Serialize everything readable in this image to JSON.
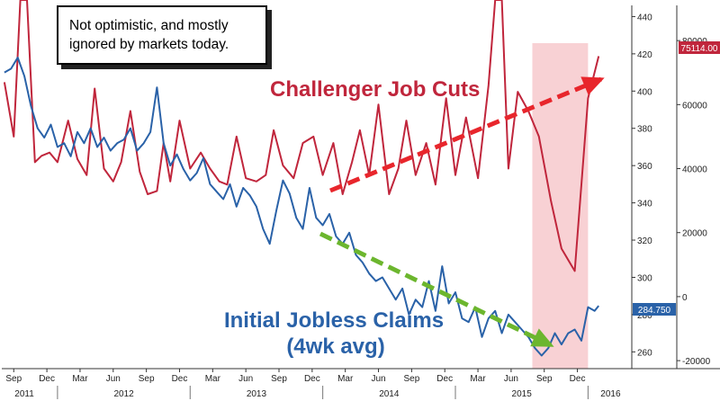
{
  "annotation": "Not optimistic, and mostly ignored by markets today.",
  "chart_data": {
    "type": "line",
    "x_month_ticks": [
      "Sep",
      "Dec",
      "Mar",
      "Jun",
      "Sep",
      "Dec",
      "Mar",
      "Jun",
      "Sep",
      "Dec",
      "Mar",
      "Jun",
      "Sep",
      "Dec",
      "Mar",
      "Jun",
      "Sep",
      "Dec"
    ],
    "x_years": [
      "2011",
      "2012",
      "2013",
      "2014",
      "2015",
      "2016"
    ],
    "left_axis": {
      "ticks": [
        260,
        280,
        300,
        320,
        340,
        360,
        380,
        400,
        420,
        440
      ],
      "range": [
        251,
        446
      ]
    },
    "right_axis": {
      "ticks": [
        "80000",
        "60000",
        "40000",
        "20000",
        "0",
        "-20000"
      ],
      "values": [
        80000,
        60000,
        40000,
        20000,
        0,
        -20000
      ],
      "range": [
        -22500,
        91000
      ]
    },
    "x_range": [
      2011.58,
      2016.33
    ],
    "series": [
      {
        "name": "Challenger Job Cuts",
        "axis": "right",
        "color": "#c0263c",
        "last_value_label": "75114.00",
        "x": [
          2011.6,
          2011.67,
          2011.72,
          2011.77,
          2011.83,
          2011.88,
          2011.94,
          2012.0,
          2012.08,
          2012.15,
          2012.22,
          2012.28,
          2012.35,
          2012.42,
          2012.48,
          2012.55,
          2012.62,
          2012.68,
          2012.75,
          2012.8,
          2012.85,
          2012.92,
          2013.0,
          2013.08,
          2013.15,
          2013.22,
          2013.28,
          2013.35,
          2013.42,
          2013.5,
          2013.57,
          2013.63,
          2013.7,
          2013.78,
          2013.85,
          2013.93,
          2014.0,
          2014.08,
          2014.15,
          2014.22,
          2014.28,
          2014.35,
          2014.42,
          2014.5,
          2014.57,
          2014.63,
          2014.7,
          2014.78,
          2014.85,
          2014.93,
          2015.0,
          2015.08,
          2015.17,
          2015.25,
          2015.3,
          2015.35,
          2015.4,
          2015.47,
          2015.55,
          2015.63,
          2015.72,
          2015.8,
          2015.9,
          2016.0,
          2016.08
        ],
        "values": [
          67000,
          50000,
          120000,
          100000,
          42000,
          44000,
          45000,
          42000,
          55000,
          43000,
          38000,
          65000,
          40000,
          36000,
          42000,
          58000,
          39000,
          32000,
          33000,
          48000,
          36000,
          55000,
          40000,
          45000,
          40000,
          36000,
          35000,
          50000,
          37000,
          36000,
          38000,
          52000,
          41000,
          37000,
          48000,
          50000,
          38000,
          48000,
          32000,
          42000,
          52000,
          38000,
          60000,
          32000,
          40000,
          55000,
          38000,
          48000,
          35000,
          62000,
          38000,
          56000,
          37000,
          66000,
          120000,
          115000,
          40000,
          64000,
          58000,
          50000,
          30000,
          15000,
          8000,
          62000,
          75114
        ]
      },
      {
        "name": "Initial Jobless Claims",
        "label_line_2": "(4wk avg)",
        "axis": "left",
        "color": "#2a62a8",
        "last_value_label": "284.750",
        "x": [
          2011.6,
          2011.65,
          2011.7,
          2011.75,
          2011.8,
          2011.85,
          2011.9,
          2011.95,
          2012.0,
          2012.05,
          2012.1,
          2012.15,
          2012.2,
          2012.25,
          2012.3,
          2012.35,
          2012.4,
          2012.45,
          2012.5,
          2012.55,
          2012.6,
          2012.65,
          2012.7,
          2012.75,
          2012.8,
          2012.85,
          2012.9,
          2012.95,
          2013.0,
          2013.05,
          2013.1,
          2013.15,
          2013.2,
          2013.25,
          2013.3,
          2013.35,
          2013.4,
          2013.45,
          2013.5,
          2013.55,
          2013.6,
          2013.65,
          2013.7,
          2013.75,
          2013.8,
          2013.85,
          2013.9,
          2013.95,
          2014.0,
          2014.05,
          2014.1,
          2014.15,
          2014.2,
          2014.25,
          2014.3,
          2014.35,
          2014.4,
          2014.45,
          2014.5,
          2014.55,
          2014.6,
          2014.65,
          2014.7,
          2014.75,
          2014.8,
          2014.85,
          2014.9,
          2014.95,
          2015.0,
          2015.05,
          2015.1,
          2015.15,
          2015.2,
          2015.25,
          2015.3,
          2015.35,
          2015.4,
          2015.45,
          2015.5,
          2015.55,
          2015.6,
          2015.65,
          2015.7,
          2015.75,
          2015.8,
          2015.85,
          2015.9,
          2015.95,
          2016.0,
          2016.05,
          2016.08
        ],
        "values": [
          410,
          412,
          418,
          408,
          392,
          380,
          375,
          382,
          370,
          372,
          365,
          378,
          372,
          380,
          370,
          375,
          368,
          372,
          374,
          380,
          368,
          372,
          378,
          402,
          372,
          360,
          366,
          358,
          352,
          356,
          364,
          350,
          346,
          342,
          350,
          338,
          348,
          344,
          338,
          326,
          318,
          336,
          352,
          345,
          332,
          326,
          348,
          332,
          328,
          334,
          322,
          318,
          324,
          312,
          308,
          302,
          298,
          300,
          294,
          288,
          294,
          280,
          288,
          284,
          298,
          282,
          306,
          286,
          292,
          278,
          276,
          284,
          268,
          278,
          282,
          270,
          280,
          276,
          272,
          268,
          262,
          258,
          262,
          270,
          264,
          270,
          272,
          266,
          284,
          282,
          284.75
        ]
      }
    ],
    "trend_arrows": [
      {
        "series": "Challenger Job Cuts",
        "direction": "up",
        "color": "#e8262c"
      },
      {
        "series": "Initial Jobless Claims",
        "direction": "down",
        "color": "#6cb62e"
      }
    ],
    "highlight_band_x": [
      2015.58,
      2016.0
    ],
    "grid": false
  }
}
